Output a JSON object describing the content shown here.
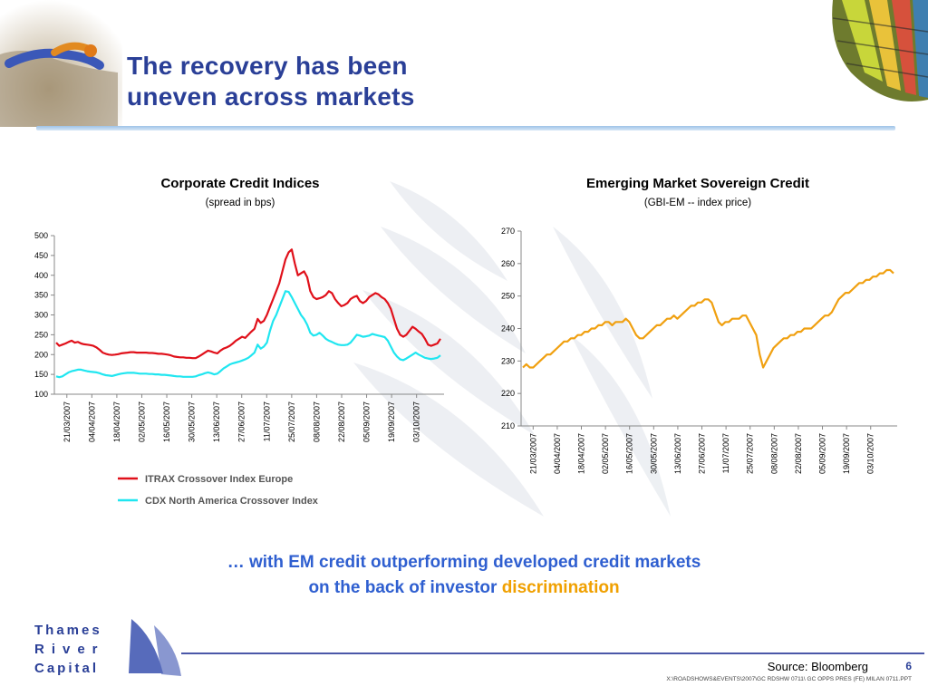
{
  "slide": {
    "title_line1": "The recovery has been",
    "title_line2": "uneven across markets",
    "conclusion_line1": "… with EM credit outperforming developed credit markets",
    "conclusion_line2_prefix": "on the back of investor ",
    "conclusion_highlight": "discrimination",
    "source": "Source: Bloomberg",
    "page_number": "6",
    "file_path": "X:\\ROADSHOWS&EVENTS\\2007\\GC RDSHW 0711\\ GC OPPS PRES (FE) MILAN 0711.PPT",
    "logo_lines": [
      "Thames",
      "River",
      "Capital"
    ],
    "colors": {
      "title": "#2a3f97",
      "conclusion": "#2f5fd0",
      "highlight": "#f0a000"
    }
  },
  "chart_data": [
    {
      "type": "line",
      "title": "Corporate Credit Indices",
      "subtitle": "(spread in bps)",
      "x_ticks": [
        "21/03/2007",
        "04/04/2007",
        "18/04/2007",
        "02/05/2007",
        "16/05/2007",
        "30/05/2007",
        "13/06/2007",
        "27/06/2007",
        "11/07/2007",
        "25/07/2007",
        "08/08/2007",
        "22/08/2007",
        "05/09/2007",
        "19/09/2007",
        "03/10/2007"
      ],
      "ylim": [
        100,
        500
      ],
      "y_ticks": [
        100,
        150,
        200,
        250,
        300,
        350,
        400,
        450,
        500
      ],
      "legend": "bottom",
      "series": [
        {
          "name": "ITRAX Crossover Index Europe",
          "color": "#e0101a",
          "values": [
            230,
            222,
            225,
            228,
            232,
            235,
            230,
            232,
            228,
            226,
            225,
            224,
            222,
            218,
            212,
            205,
            202,
            200,
            199,
            200,
            201,
            203,
            204,
            205,
            206,
            206,
            205,
            205,
            205,
            205,
            204,
            204,
            203,
            202,
            202,
            201,
            200,
            198,
            195,
            194,
            193,
            193,
            192,
            192,
            191,
            191,
            195,
            200,
            205,
            210,
            208,
            205,
            203,
            210,
            215,
            218,
            222,
            228,
            235,
            240,
            245,
            242,
            250,
            258,
            265,
            290,
            280,
            285,
            300,
            320,
            340,
            360,
            380,
            410,
            440,
            458,
            465,
            430,
            400,
            405,
            410,
            395,
            360,
            345,
            340,
            342,
            345,
            350,
            360,
            355,
            340,
            330,
            322,
            325,
            330,
            340,
            345,
            348,
            335,
            330,
            335,
            345,
            350,
            355,
            352,
            345,
            340,
            330,
            315,
            290,
            265,
            250,
            245,
            250,
            260,
            270,
            265,
            258,
            252,
            240,
            225,
            222,
            225,
            228,
            240
          ]
        },
        {
          "name": "CDX North America Crossover Index",
          "color": "#20e6f0",
          "values": [
            145,
            143,
            145,
            150,
            155,
            158,
            160,
            162,
            162,
            160,
            158,
            157,
            156,
            155,
            153,
            150,
            148,
            147,
            146,
            148,
            150,
            152,
            153,
            154,
            154,
            154,
            153,
            152,
            152,
            152,
            151,
            151,
            150,
            150,
            149,
            149,
            148,
            147,
            146,
            145,
            145,
            144,
            144,
            144,
            144,
            145,
            148,
            150,
            153,
            155,
            153,
            150,
            152,
            158,
            165,
            170,
            175,
            178,
            180,
            182,
            185,
            188,
            192,
            198,
            205,
            225,
            215,
            220,
            230,
            260,
            285,
            300,
            320,
            340,
            360,
            358,
            345,
            330,
            315,
            300,
            290,
            275,
            255,
            248,
            250,
            255,
            248,
            240,
            235,
            232,
            228,
            225,
            224,
            224,
            225,
            230,
            240,
            250,
            248,
            245,
            246,
            248,
            252,
            250,
            248,
            246,
            244,
            235,
            220,
            205,
            195,
            188,
            186,
            190,
            195,
            200,
            205,
            200,
            196,
            192,
            190,
            189,
            190,
            192,
            198
          ]
        }
      ]
    },
    {
      "type": "line",
      "title": "Emerging Market Sovereign Credit",
      "subtitle": "(GBI-EM -- index price)",
      "x_ticks": [
        "21/03/2007",
        "04/04/2007",
        "18/04/2007",
        "02/05/2007",
        "16/05/2007",
        "30/05/2007",
        "13/06/2007",
        "27/06/2007",
        "11/07/2007",
        "25/07/2007",
        "08/08/2007",
        "22/08/2007",
        "05/09/2007",
        "19/09/2007",
        "03/10/2007"
      ],
      "ylim": [
        210,
        270
      ],
      "y_ticks": [
        210,
        220,
        230,
        240,
        250,
        260,
        270
      ],
      "series": [
        {
          "name": "GBI-EM",
          "color": "#f0a010",
          "values": [
            228,
            229,
            228,
            228,
            229,
            230,
            231,
            232,
            232,
            233,
            234,
            235,
            236,
            236,
            237,
            237,
            238,
            238,
            239,
            239,
            240,
            240,
            241,
            241,
            242,
            242,
            241,
            242,
            242,
            242,
            243,
            242,
            240,
            238,
            237,
            237,
            238,
            239,
            240,
            241,
            241,
            242,
            243,
            243,
            244,
            243,
            244,
            245,
            246,
            247,
            247,
            248,
            248,
            249,
            249,
            248,
            245,
            242,
            241,
            242,
            242,
            243,
            243,
            243,
            244,
            244,
            242,
            240,
            238,
            232,
            228,
            230,
            232,
            234,
            235,
            236,
            237,
            237,
            238,
            238,
            239,
            239,
            240,
            240,
            240,
            241,
            242,
            243,
            244,
            244,
            245,
            247,
            249,
            250,
            251,
            251,
            252,
            253,
            254,
            254,
            255,
            255,
            256,
            256,
            257,
            257,
            258,
            258,
            257
          ]
        }
      ]
    }
  ]
}
